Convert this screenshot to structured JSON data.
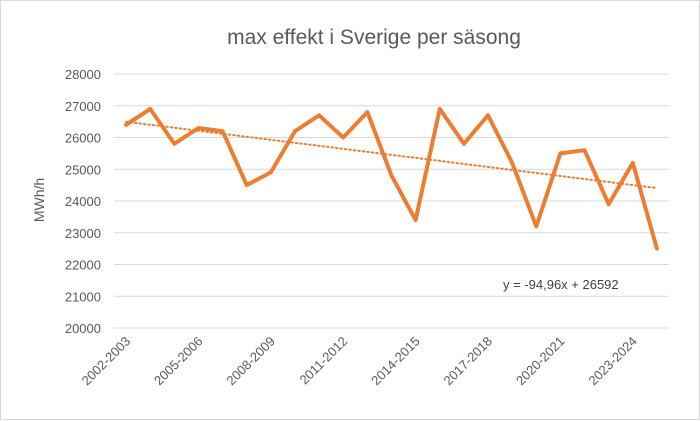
{
  "chart_data": {
    "type": "line",
    "title": "max effekt i Sverige per säsong",
    "xlabel": "",
    "ylabel": "MWh/h",
    "ylim": [
      20000,
      28000
    ],
    "y_ticks": [
      20000,
      21000,
      22000,
      23000,
      24000,
      25000,
      26000,
      27000,
      28000
    ],
    "grid": true,
    "legend": "none",
    "categories": [
      "2002-2003",
      "2003-2004",
      "2004-2005",
      "2005-2006",
      "2006-2007",
      "2007-2008",
      "2008-2009",
      "2009-2010",
      "2010-2011",
      "2011-2012",
      "2012-2013",
      "2013-2014",
      "2014-2015",
      "2015-2016",
      "2016-2017",
      "2017-2018",
      "2018-2019",
      "2019-2020",
      "2020-2021",
      "2021-2022",
      "2022-2023",
      "2023-2024",
      "2024-2025"
    ],
    "category_labels": [
      "2002-2003",
      "2005-2006",
      "2008-2009",
      "2011-2012",
      "2014-2015",
      "2017-2018",
      "2020-2021",
      "2023-2024"
    ],
    "series": [
      {
        "values": [
          26400,
          26900,
          25800,
          26300,
          26200,
          24500,
          24900,
          26200,
          26700,
          26000,
          26800,
          24800,
          23400,
          26900,
          25800,
          26700,
          25200,
          23200,
          25500,
          25600,
          23900,
          25200,
          22500
        ],
        "color": "#ed7d31"
      }
    ],
    "trendline": {
      "type": "linear",
      "slope": -94.96,
      "intercept": 26592,
      "equation_label": "y = -94,96x + 26592",
      "color": "#ed7d31",
      "style": "dotted"
    }
  }
}
